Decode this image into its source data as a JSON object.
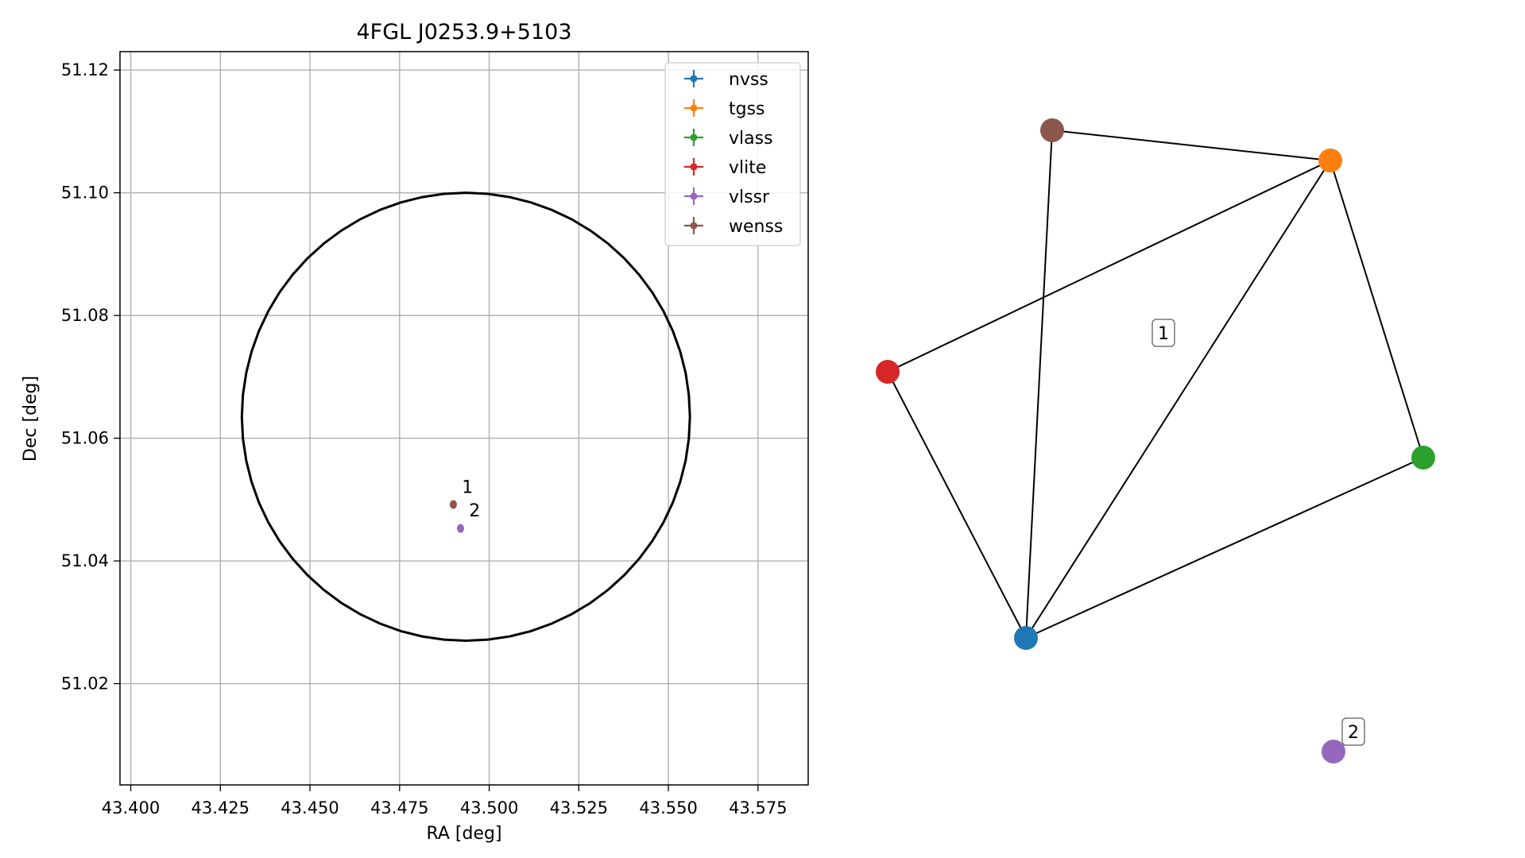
{
  "chart_data": [
    {
      "type": "scatter",
      "title": "4FGL J0253.9+5103",
      "xlabel": "RA [deg]",
      "ylabel": "Dec [deg]",
      "xlim": [
        43.397,
        43.589
      ],
      "ylim": [
        51.0035,
        51.123
      ],
      "xticks": [
        43.4,
        43.425,
        43.45,
        43.475,
        43.5,
        43.525,
        43.55,
        43.575
      ],
      "xtick_labels": [
        "43.400",
        "43.425",
        "43.450",
        "43.475",
        "43.500",
        "43.525",
        "43.550",
        "43.575"
      ],
      "yticks": [
        51.02,
        51.04,
        51.06,
        51.08,
        51.1,
        51.12
      ],
      "ytick_labels": [
        "51.02",
        "51.04",
        "51.06",
        "51.08",
        "51.10",
        "51.12"
      ],
      "grid": true,
      "legend_position": "top-right",
      "circle": {
        "center": [
          43.4935,
          51.0635
        ],
        "radius_deg_dec": 0.0365
      },
      "series": [
        {
          "name": "nvss",
          "color": "#1f77b4",
          "points": []
        },
        {
          "name": "tgss",
          "color": "#ff7f0e",
          "points": []
        },
        {
          "name": "vlass",
          "color": "#2ca02c",
          "points": []
        },
        {
          "name": "vlite",
          "color": "#d62728",
          "points": []
        },
        {
          "name": "vlssr",
          "color": "#9467bd",
          "points": [
            {
              "x": 43.492,
              "y": 51.0453
            }
          ]
        },
        {
          "name": "wenss",
          "color": "#8c564b",
          "points": [
            {
              "x": 43.49,
              "y": 51.0492
            }
          ]
        }
      ],
      "annotations": [
        {
          "text": "1",
          "x": 43.4915,
          "y": 51.0508
        },
        {
          "text": "2",
          "x": 43.4935,
          "y": 51.047
        }
      ]
    },
    {
      "type": "graph",
      "nodes": [
        {
          "id": "wenss",
          "color": "#8c564b"
        },
        {
          "id": "tgss",
          "color": "#ff7f0e"
        },
        {
          "id": "vlite",
          "color": "#d62728"
        },
        {
          "id": "vlass",
          "color": "#2ca02c"
        },
        {
          "id": "nvss",
          "color": "#1f77b4"
        },
        {
          "id": "vlssr",
          "color": "#9467bd"
        }
      ],
      "edges": [
        [
          "wenss",
          "tgss"
        ],
        [
          "wenss",
          "nvss"
        ],
        [
          "tgss",
          "vlite"
        ],
        [
          "tgss",
          "nvss"
        ],
        [
          "tgss",
          "vlass"
        ],
        [
          "vlite",
          "nvss"
        ],
        [
          "nvss",
          "vlass"
        ]
      ],
      "group_labels": [
        "1",
        "2"
      ]
    }
  ]
}
